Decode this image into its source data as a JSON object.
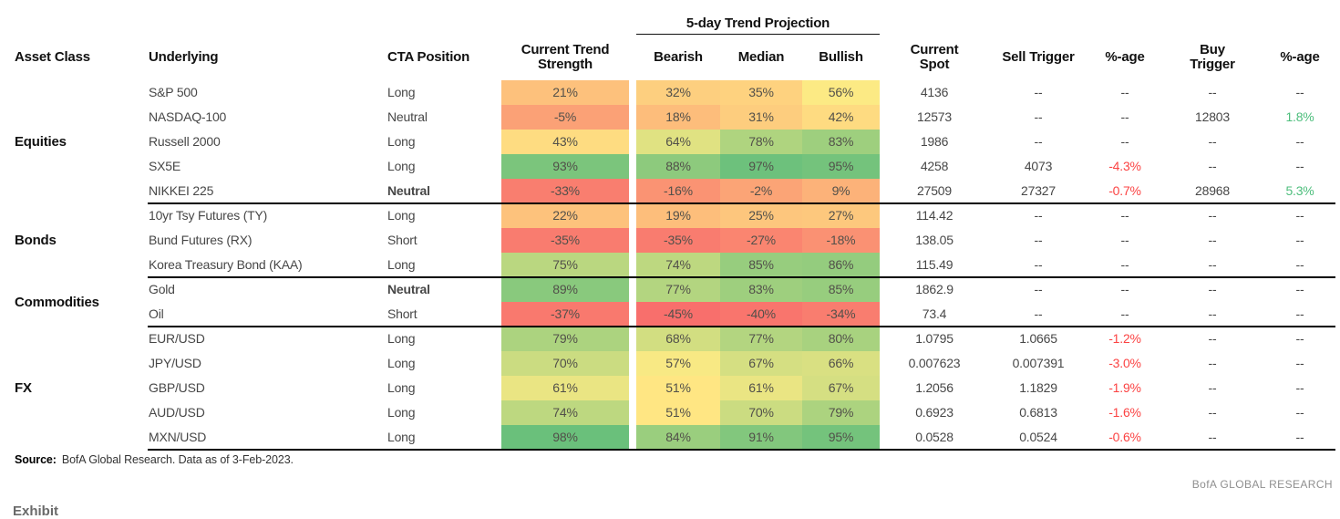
{
  "chart_data": {
    "type": "table",
    "projection_group_header": "5-day Trend Projection",
    "column_headers": [
      "Asset Class",
      "Underlying",
      "CTA Position",
      "Current Trend Strength",
      "Bearish",
      "Median",
      "Bullish",
      "Current Spot",
      "Sell Trigger",
      "%-age",
      "Buy Trigger",
      "%-age"
    ],
    "groups": [
      {
        "asset_class": "Equities",
        "rows": [
          {
            "underlying": "S&P 500",
            "position": "Long",
            "position_bold": false,
            "strength": 21,
            "bearish": 32,
            "median": 35,
            "bullish": 56,
            "spot": "4136",
            "sell_trigger": "--",
            "sell_pct": "--",
            "buy_trigger": "--",
            "buy_pct": "--"
          },
          {
            "underlying": "NASDAQ-100",
            "position": "Neutral",
            "position_bold": false,
            "strength": -5,
            "bearish": 18,
            "median": 31,
            "bullish": 42,
            "spot": "12573",
            "sell_trigger": "--",
            "sell_pct": "--",
            "buy_trigger": "12803",
            "buy_pct": "1.8%"
          },
          {
            "underlying": "Russell 2000",
            "position": "Long",
            "position_bold": false,
            "strength": 43,
            "bearish": 64,
            "median": 78,
            "bullish": 83,
            "spot": "1986",
            "sell_trigger": "--",
            "sell_pct": "--",
            "buy_trigger": "--",
            "buy_pct": "--"
          },
          {
            "underlying": "SX5E",
            "position": "Long",
            "position_bold": false,
            "strength": 93,
            "bearish": 88,
            "median": 97,
            "bullish": 95,
            "spot": "4258",
            "sell_trigger": "4073",
            "sell_pct": "-4.3%",
            "buy_trigger": "--",
            "buy_pct": "--"
          },
          {
            "underlying": "NIKKEI 225",
            "position": "Neutral",
            "position_bold": true,
            "strength": -33,
            "bearish": -16,
            "median": -2,
            "bullish": 9,
            "spot": "27509",
            "sell_trigger": "27327",
            "sell_pct": "-0.7%",
            "buy_trigger": "28968",
            "buy_pct": "5.3%"
          }
        ]
      },
      {
        "asset_class": "Bonds",
        "rows": [
          {
            "underlying": "10yr Tsy Futures (TY)",
            "position": "Long",
            "position_bold": false,
            "strength": 22,
            "bearish": 19,
            "median": 25,
            "bullish": 27,
            "spot": "114.42",
            "sell_trigger": "--",
            "sell_pct": "--",
            "buy_trigger": "--",
            "buy_pct": "--"
          },
          {
            "underlying": "Bund Futures (RX)",
            "position": "Short",
            "position_bold": false,
            "strength": -35,
            "bearish": -35,
            "median": -27,
            "bullish": -18,
            "spot": "138.05",
            "sell_trigger": "--",
            "sell_pct": "--",
            "buy_trigger": "--",
            "buy_pct": "--"
          },
          {
            "underlying": "Korea Treasury Bond (KAA)",
            "position": "Long",
            "position_bold": false,
            "strength": 75,
            "bearish": 74,
            "median": 85,
            "bullish": 86,
            "spot": "115.49",
            "sell_trigger": "--",
            "sell_pct": "--",
            "buy_trigger": "--",
            "buy_pct": "--"
          }
        ]
      },
      {
        "asset_class": "Commodities",
        "rows": [
          {
            "underlying": "Gold",
            "position": "Neutral",
            "position_bold": true,
            "strength": 89,
            "bearish": 77,
            "median": 83,
            "bullish": 85,
            "spot": "1862.9",
            "sell_trigger": "--",
            "sell_pct": "--",
            "buy_trigger": "--",
            "buy_pct": "--"
          },
          {
            "underlying": "Oil",
            "position": "Short",
            "position_bold": false,
            "strength": -37,
            "bearish": -45,
            "median": -40,
            "bullish": -34,
            "spot": "73.4",
            "sell_trigger": "--",
            "sell_pct": "--",
            "buy_trigger": "--",
            "buy_pct": "--"
          }
        ]
      },
      {
        "asset_class": "FX",
        "rows": [
          {
            "underlying": "EUR/USD",
            "position": "Long",
            "position_bold": false,
            "strength": 79,
            "bearish": 68,
            "median": 77,
            "bullish": 80,
            "spot": "1.0795",
            "sell_trigger": "1.0665",
            "sell_pct": "-1.2%",
            "buy_trigger": "--",
            "buy_pct": "--"
          },
          {
            "underlying": "JPY/USD",
            "position": "Long",
            "position_bold": false,
            "strength": 70,
            "bearish": 57,
            "median": 67,
            "bullish": 66,
            "spot": "0.007623",
            "sell_trigger": "0.007391",
            "sell_pct": "-3.0%",
            "buy_trigger": "--",
            "buy_pct": "--"
          },
          {
            "underlying": "GBP/USD",
            "position": "Long",
            "position_bold": false,
            "strength": 61,
            "bearish": 51,
            "median": 61,
            "bullish": 67,
            "spot": "1.2056",
            "sell_trigger": "1.1829",
            "sell_pct": "-1.9%",
            "buy_trigger": "--",
            "buy_pct": "--"
          },
          {
            "underlying": "AUD/USD",
            "position": "Long",
            "position_bold": false,
            "strength": 74,
            "bearish": 51,
            "median": 70,
            "bullish": 79,
            "spot": "0.6923",
            "sell_trigger": "0.6813",
            "sell_pct": "-1.6%",
            "buy_trigger": "--",
            "buy_pct": "--"
          },
          {
            "underlying": "MXN/USD",
            "position": "Long",
            "position_bold": false,
            "strength": 98,
            "bearish": 84,
            "median": 91,
            "bullish": 95,
            "spot": "0.0528",
            "sell_trigger": "0.0524",
            "sell_pct": "-0.6%",
            "buy_trigger": "--",
            "buy_pct": "--"
          }
        ]
      }
    ],
    "layout_hints": {
      "heatmap_columns": [
        "Current Trend Strength",
        "Bearish",
        "Median",
        "Bullish"
      ],
      "grid": "group separators only"
    }
  },
  "style": {
    "heat_min_color": "#F8696B",
    "heat_mid_color": "#FFEB84",
    "heat_max_color": "#63BE7B",
    "heat_scale": {
      "min": -50,
      "mid": 55,
      "max": 100
    },
    "negative_pct_color": "#FB4343",
    "positive_pct_color": "#4DBE7C"
  },
  "footer": {
    "source_label": "Source:",
    "source_text": "BofA Global Research.  Data as of 3-Feb-2023.",
    "brand": "BofA GLOBAL RESEARCH",
    "clipped_next_heading": "Exhibit"
  }
}
